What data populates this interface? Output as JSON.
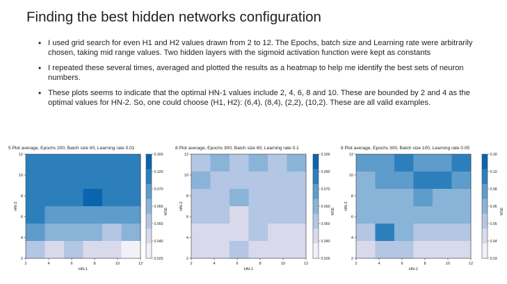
{
  "slide": {
    "title": "Finding the best hidden networks configuration",
    "bullets": [
      "I used grid search for even H1 and H2 values drawn from 2 to 12. The Epochs, batch size and Learning rate were arbitrarily chosen, taking mid range values. Two hidden layers with the sigmoid activation function were kept as constants",
      "I repeated these several times, averaged and plotted the results as a heatmap to help me identify the best sets of neuron numbers.",
      "These plots seems to indicate that the optimal HN-1 values include 2, 4, 6, 8 and 10. These are bounded by 2 and 4 as the optimal values for HN-2. So, one could choose (H1, H2): (6,4), (8,4), (2,2), (10,2). These are all valid examples."
    ]
  },
  "chart_data": [
    {
      "type": "heatmap",
      "title": "5 Plot average, Epochs 200, Batch size 80, Learning rate 0.01",
      "xlabel": "HN-1",
      "ylabel": "HN-2",
      "colorbar_label": "MSE",
      "x": [
        2,
        4,
        6,
        8,
        10,
        12
      ],
      "y": [
        2,
        4,
        6,
        8,
        10,
        12
      ],
      "xlim": [
        2,
        12
      ],
      "ylim": [
        2,
        12
      ],
      "colorbar_ticks": [
        "0.300",
        "0.100",
        "0.070",
        "0.060",
        "0.050",
        "0.040",
        "0.025"
      ],
      "levels": [
        5,
        5,
        5,
        5,
        5,
        5,
        5,
        5,
        5,
        5,
        5,
        5,
        5,
        5,
        5,
        6,
        5,
        5,
        5,
        4,
        4,
        4,
        4,
        4,
        4,
        3,
        3,
        3,
        2,
        3,
        2,
        1,
        2,
        1,
        1,
        0
      ],
      "scale": [
        "#f2f1f8",
        "#d9d9ec",
        "#b3c6e3",
        "#8ab3d8",
        "#5d9ccb",
        "#2d7fbc",
        "#0b65ae"
      ]
    },
    {
      "type": "heatmap",
      "title": "8 Plot average, Epochs 300, Batch size 60, Learning rate 0.1",
      "xlabel": "HN-1",
      "ylabel": "HN-2",
      "colorbar_label": "MSE",
      "x": [
        2,
        4,
        6,
        8,
        10,
        12
      ],
      "y": [
        2,
        4,
        6,
        8,
        10,
        12
      ],
      "xlim": [
        2,
        12
      ],
      "ylim": [
        2,
        12
      ],
      "colorbar_ticks": [
        "0.200",
        "0.090",
        "0.070",
        "0.060",
        "0.050",
        "0.040",
        "0.025"
      ],
      "levels": [
        2,
        3,
        2,
        3,
        2,
        3,
        3,
        2,
        2,
        2,
        2,
        2,
        2,
        2,
        3,
        2,
        2,
        2,
        2,
        2,
        1,
        2,
        2,
        2,
        1,
        1,
        1,
        2,
        1,
        1,
        1,
        1,
        2,
        1,
        1,
        1
      ],
      "scale": [
        "#f2f1f8",
        "#d9d9ec",
        "#b3c6e3",
        "#8ab3d8",
        "#5d9ccb",
        "#2d7fbc",
        "#0b65ae"
      ]
    },
    {
      "type": "heatmap",
      "title": "8 Plot average, Epochs 300, Batch size 100, Learning rate 0.05",
      "xlabel": "HN-1",
      "ylabel": "HN-2",
      "colorbar_label": "MSE",
      "x": [
        2,
        4,
        6,
        8,
        10,
        12
      ],
      "y": [
        2,
        4,
        6,
        8,
        10,
        12
      ],
      "xlim": [
        2,
        12
      ],
      "ylim": [
        2,
        12
      ],
      "colorbar_ticks": [
        "0.30",
        "0.10",
        "0.08",
        "0.06",
        "0.05",
        "0.04",
        "0.03"
      ],
      "levels": [
        4,
        4,
        5,
        4,
        4,
        5,
        3,
        4,
        4,
        5,
        5,
        4,
        3,
        3,
        3,
        4,
        3,
        3,
        3,
        3,
        3,
        3,
        3,
        3,
        2,
        5,
        3,
        2,
        2,
        2,
        1,
        2,
        2,
        1,
        1,
        1
      ],
      "scale": [
        "#f2f1f8",
        "#d9d9ec",
        "#b3c6e3",
        "#8ab3d8",
        "#5d9ccb",
        "#2d7fbc",
        "#0b65ae"
      ]
    }
  ]
}
